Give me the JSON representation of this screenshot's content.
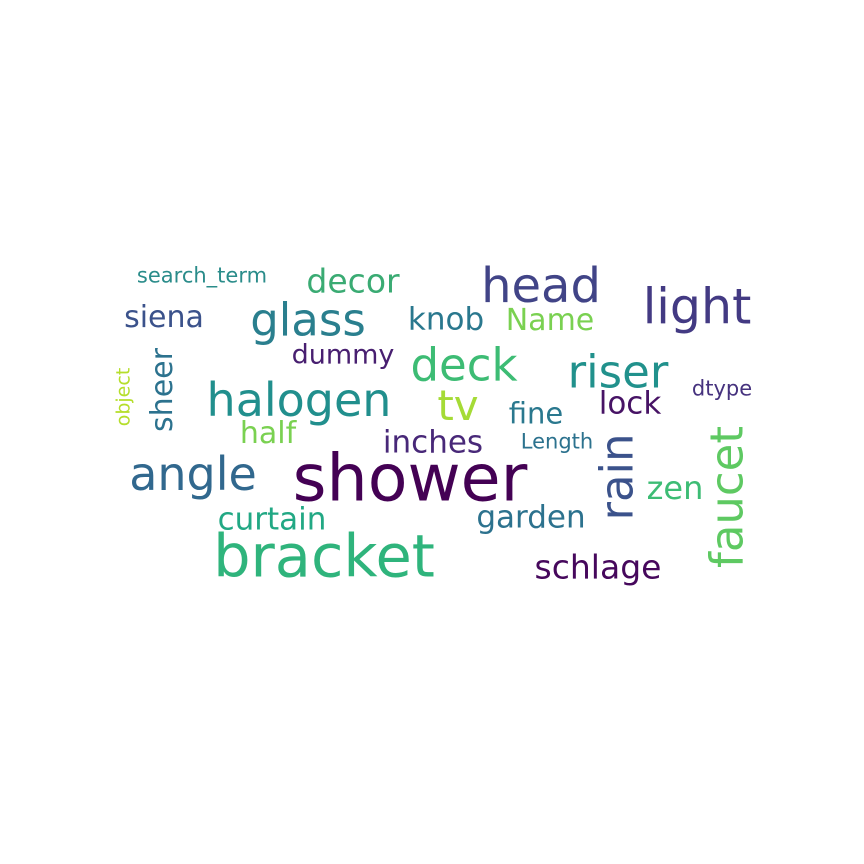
{
  "words": [
    {
      "text": "search_term",
      "color": "#2a8c8a"
    },
    {
      "text": "decor",
      "color": "#3aab73"
    },
    {
      "text": "head",
      "color": "#414487"
    },
    {
      "text": "light",
      "color": "#433a83"
    },
    {
      "text": "siena",
      "color": "#3b528b"
    },
    {
      "text": "glass",
      "color": "#2a7f8e"
    },
    {
      "text": "knob",
      "color": "#2a788e"
    },
    {
      "text": "Name",
      "color": "#7ad151"
    },
    {
      "text": "dummy",
      "color": "#481f70"
    },
    {
      "text": "deck",
      "color": "#3dbc74"
    },
    {
      "text": "riser",
      "color": "#21918c"
    },
    {
      "text": "object",
      "color": "#b5de2b"
    },
    {
      "text": "sheer",
      "color": "#2c728e"
    },
    {
      "text": "halogen",
      "color": "#218f8d"
    },
    {
      "text": "tv",
      "color": "#a5db36"
    },
    {
      "text": "fine",
      "color": "#2a788e"
    },
    {
      "text": "lock",
      "color": "#471365"
    },
    {
      "text": "dtype",
      "color": "#46327e"
    },
    {
      "text": "half",
      "color": "#7ad151"
    },
    {
      "text": "inches",
      "color": "#482878"
    },
    {
      "text": "Length",
      "color": "#2c728e"
    },
    {
      "text": "rain",
      "color": "#3b528b"
    },
    {
      "text": "faucet",
      "color": "#5ec962"
    },
    {
      "text": "angle",
      "color": "#31688e"
    },
    {
      "text": "shower",
      "color": "#440154"
    },
    {
      "text": "zen",
      "color": "#3dbc74"
    },
    {
      "text": "curtain",
      "color": "#22a884"
    },
    {
      "text": "garden",
      "color": "#2c728e"
    },
    {
      "text": "bracket",
      "color": "#2fb47c"
    },
    {
      "text": "schlage",
      "color": "#46085c"
    }
  ]
}
